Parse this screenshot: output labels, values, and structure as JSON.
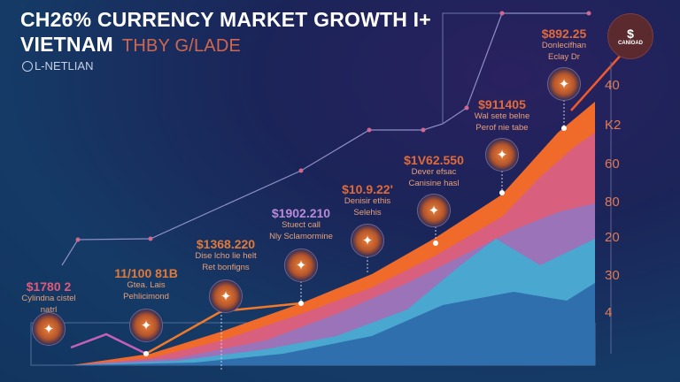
{
  "header": {
    "title_line1": "CH26% CURRENCY MARKET GROWTH I+",
    "title_line2": "VIETNAM",
    "subtitle": "THBY G/LADE",
    "brand": "L-NETLIAN"
  },
  "logo": {
    "text": "CANIOAD"
  },
  "colors": {
    "accent_orange": "#f06a2a",
    "area_pink": "#e0607a",
    "area_blue": "#3a8fc4",
    "line_light": "#8d8fc4",
    "background": "#16305f"
  },
  "chart_data": {
    "type": "area",
    "title": "CH26% CURRENCY MARKET GROWTH I+ VIETNAM",
    "y_tick_labels": [
      "40",
      "K2",
      "60",
      "80",
      "20",
      "30",
      "4"
    ],
    "annotations": [
      {
        "value": "$1780 2",
        "desc1": "Cylindna cistel",
        "desc2": "natrl",
        "icon": "lion-icon"
      },
      {
        "value": "11/100 81B",
        "desc1": "Gtea. Lais",
        "desc2": "Pehlicimond",
        "icon": "coin-icon"
      },
      {
        "value": "$1368.220",
        "desc1": "Dise lcho lie helt",
        "desc2": "Ret bonfigns",
        "icon": "temple-icon"
      },
      {
        "value": "$1902.210",
        "desc1": "Stuect call",
        "desc2": "Nly Sclamormine",
        "icon": "fire-icon"
      },
      {
        "value": "$10.9.22'",
        "desc1": "Denisir ethis",
        "desc2": "Selehis",
        "icon": "gem-icon"
      },
      {
        "value": "$1V62.550",
        "desc1": "Dever efsac",
        "desc2": "Canisine hasl",
        "icon": "diamond-icon"
      },
      {
        "value": "$911405",
        "desc1": "Wal sete belne",
        "desc2": "Perof nie tabe",
        "icon": "trophy-icon"
      },
      {
        "value": "$892.25",
        "desc1": "Donlecifhan",
        "desc2": "Eclay Dr",
        "icon": "crest-icon"
      }
    ],
    "legend": "none",
    "grid": false
  }
}
